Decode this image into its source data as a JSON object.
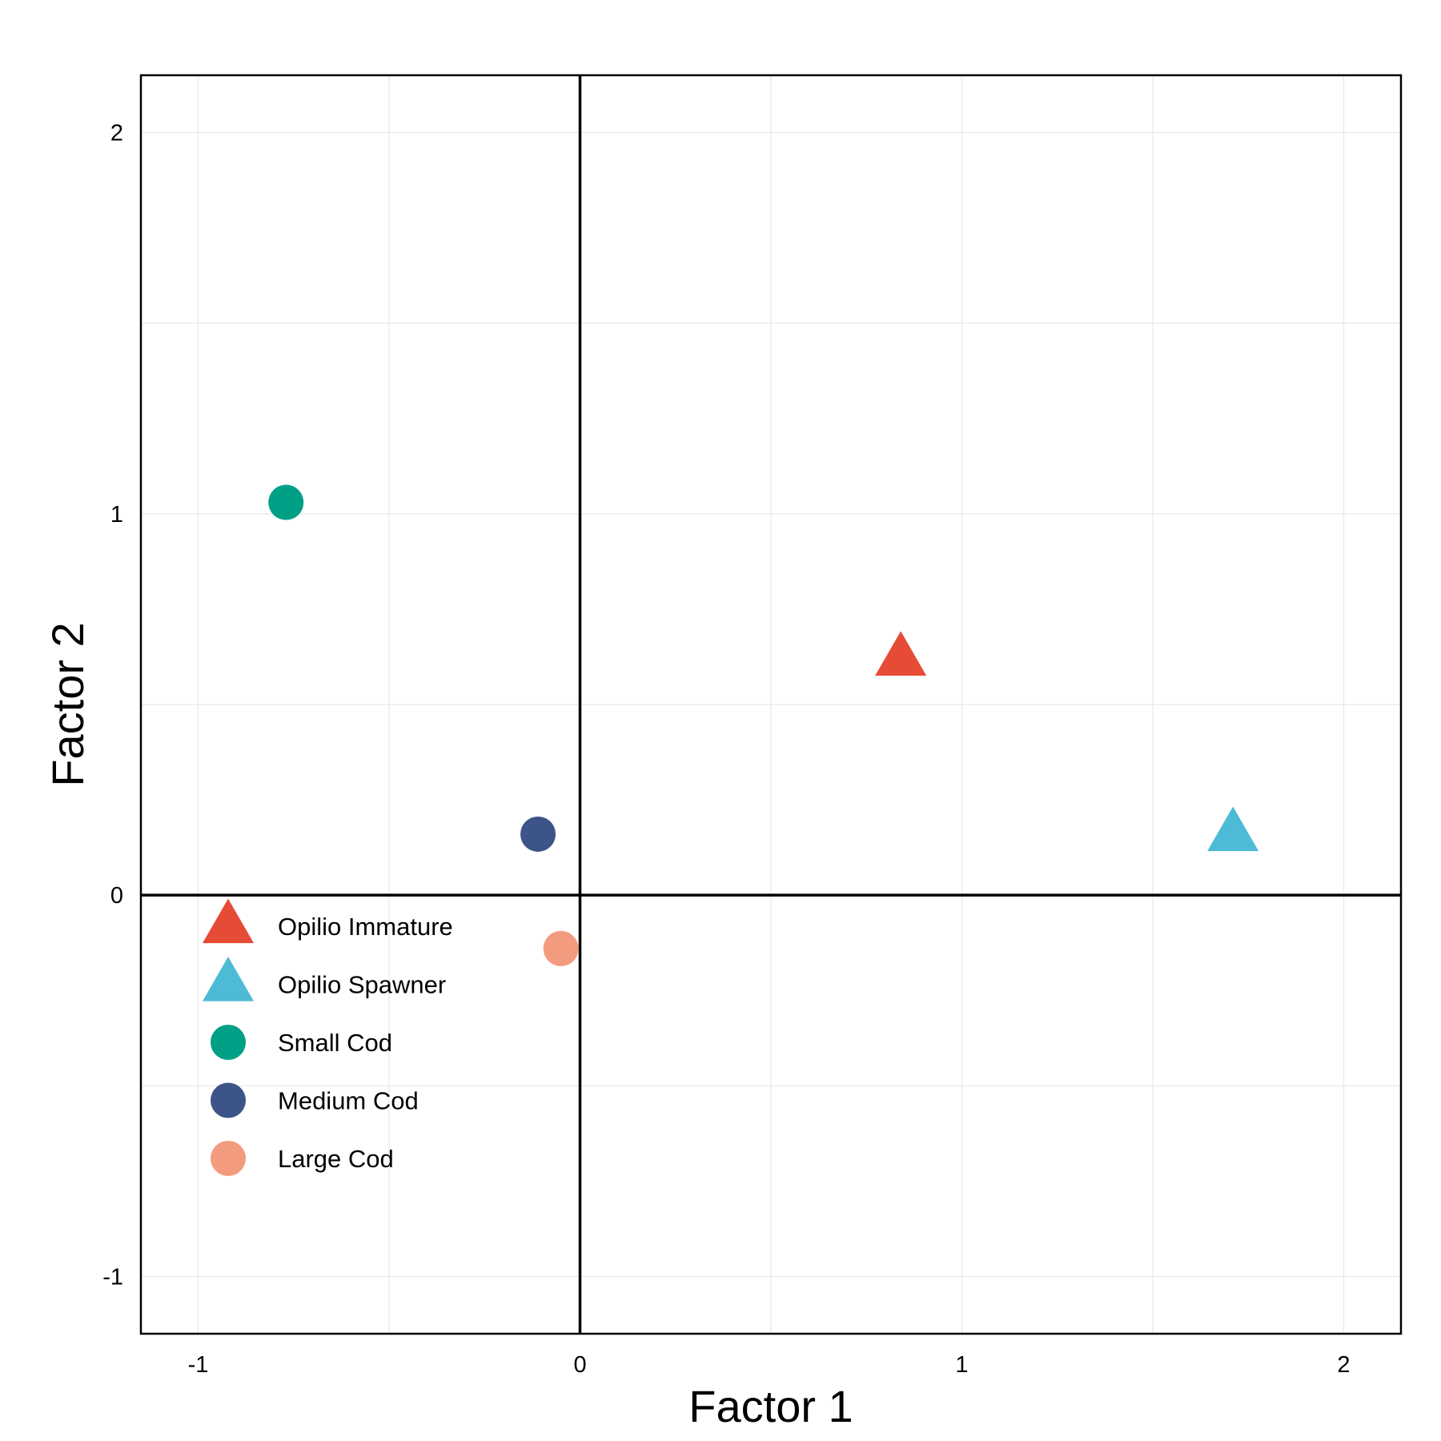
{
  "chart_data": {
    "type": "scatter",
    "xlabel": "Factor 1",
    "ylabel": "Factor 2",
    "xlim": [
      -1.15,
      2.15
    ],
    "ylim": [
      -1.15,
      2.15
    ],
    "x_ticks": [
      -1,
      0,
      1,
      2
    ],
    "y_ticks": [
      -1,
      0,
      1,
      2
    ],
    "x_minor_grid": [
      -0.5,
      0.5,
      1.5
    ],
    "y_minor_grid": [
      -0.5,
      0.5,
      1.5
    ],
    "reference_lines": {
      "x": 0,
      "y": 0
    },
    "grid": true,
    "legend_position": "bottom-left-inside",
    "series": [
      {
        "name": "Opilio Immature",
        "shape": "triangle",
        "color": "#e64b35",
        "x": 0.84,
        "y": 0.62
      },
      {
        "name": "Opilio Spawner",
        "shape": "triangle",
        "color": "#4dbbd5",
        "x": 1.71,
        "y": 0.16
      },
      {
        "name": "Small Cod",
        "shape": "circle",
        "color": "#00a087",
        "x": -0.77,
        "y": 1.03
      },
      {
        "name": "Medium Cod",
        "shape": "circle",
        "color": "#3c5488",
        "x": -0.11,
        "y": 0.16
      },
      {
        "name": "Large Cod",
        "shape": "circle",
        "color": "#f39b7f",
        "x": -0.05,
        "y": -0.14
      }
    ]
  }
}
